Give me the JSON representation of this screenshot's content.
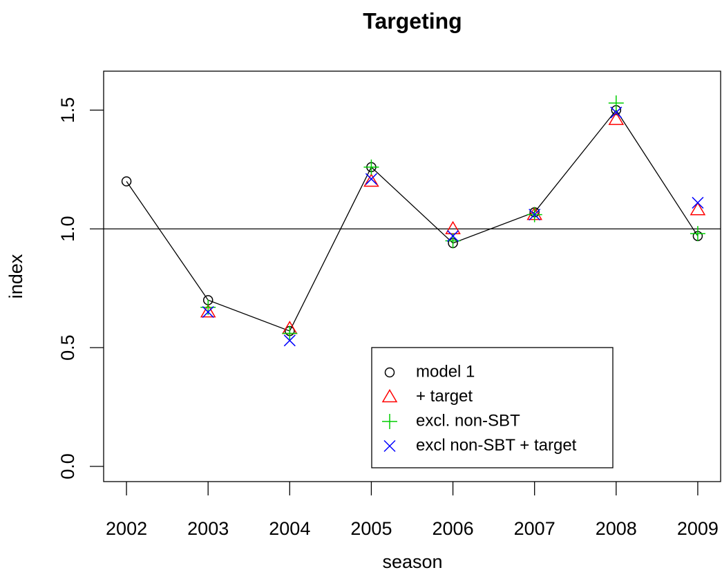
{
  "chart_data": {
    "type": "scatter",
    "title": "Targeting",
    "x_label": "season",
    "y_label": "index",
    "x": [
      2002,
      2003,
      2004,
      2005,
      2006,
      2007,
      2008,
      2009
    ],
    "series": [
      {
        "name": "model 1",
        "color": "#000000",
        "marker": "circle",
        "line": true,
        "values": [
          1.2,
          0.7,
          0.57,
          1.26,
          0.94,
          1.07,
          1.5,
          0.97
        ]
      },
      {
        "name": "+ target",
        "color": "#ff0000",
        "marker": "triangle",
        "values": [
          null,
          0.65,
          0.58,
          1.2,
          1.0,
          1.06,
          1.46,
          1.08
        ]
      },
      {
        "name": "excl. non-SBT",
        "color": "#00cd00",
        "marker": "plus",
        "values": [
          null,
          0.67,
          0.56,
          1.26,
          0.95,
          1.06,
          1.53,
          0.98
        ]
      },
      {
        "name": "excl non-SBT + target",
        "color": "#0000ff",
        "marker": "cross",
        "values": [
          null,
          0.65,
          0.53,
          1.21,
          0.97,
          1.06,
          1.49,
          1.11
        ]
      }
    ],
    "hline": 1,
    "xlim": [
      2001.72,
      2009.28
    ],
    "xticks": [
      2002,
      2003,
      2004,
      2005,
      2006,
      2007,
      2008,
      2009
    ],
    "ylim": [
      -0.064,
      1.664
    ],
    "yticks": [
      {
        "value": 0,
        "label": "0.0"
      },
      0.5,
      {
        "value": 1,
        "label": "1.0"
      },
      1.5
    ],
    "legend": "bottom"
  }
}
